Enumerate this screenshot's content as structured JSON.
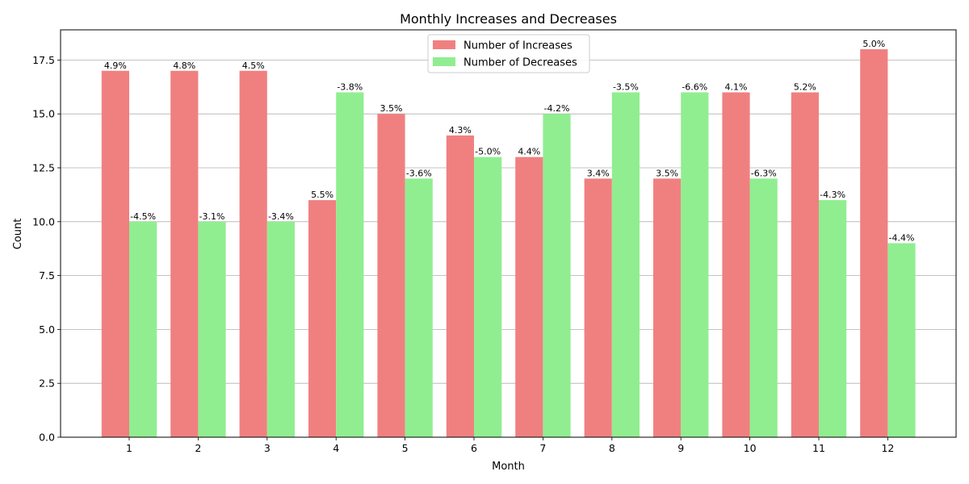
{
  "chart_data": {
    "type": "bar",
    "title": "Monthly Increases and Decreases",
    "xlabel": "Month",
    "ylabel": "Count",
    "categories": [
      "1",
      "2",
      "3",
      "4",
      "5",
      "6",
      "7",
      "8",
      "9",
      "10",
      "11",
      "12"
    ],
    "ylim": [
      0,
      18.9
    ],
    "yticks": [
      "0.0",
      "2.5",
      "5.0",
      "7.5",
      "10.0",
      "12.5",
      "15.0",
      "17.5"
    ],
    "grid": "horizontal",
    "legend_position": "top-center",
    "series": [
      {
        "name": "Number of Increases",
        "color": "#F08080",
        "values": [
          17,
          17,
          17,
          11,
          15,
          14,
          13,
          12,
          12,
          16,
          16,
          18
        ],
        "labels": [
          "4.9%",
          "4.8%",
          "4.5%",
          "5.5%",
          "3.5%",
          "4.3%",
          "4.4%",
          "3.4%",
          "3.5%",
          "4.1%",
          "5.2%",
          "5.0%"
        ]
      },
      {
        "name": "Number of Decreases",
        "color": "#90EE90",
        "values": [
          10,
          10,
          10,
          16,
          12,
          13,
          15,
          16,
          16,
          12,
          11,
          9
        ],
        "labels": [
          "-4.5%",
          "-3.1%",
          "-3.4%",
          "-3.8%",
          "-3.6%",
          "-5.0%",
          "-4.2%",
          "-3.5%",
          "-6.6%",
          "-6.3%",
          "-4.3%",
          "-4.4%"
        ]
      }
    ]
  }
}
